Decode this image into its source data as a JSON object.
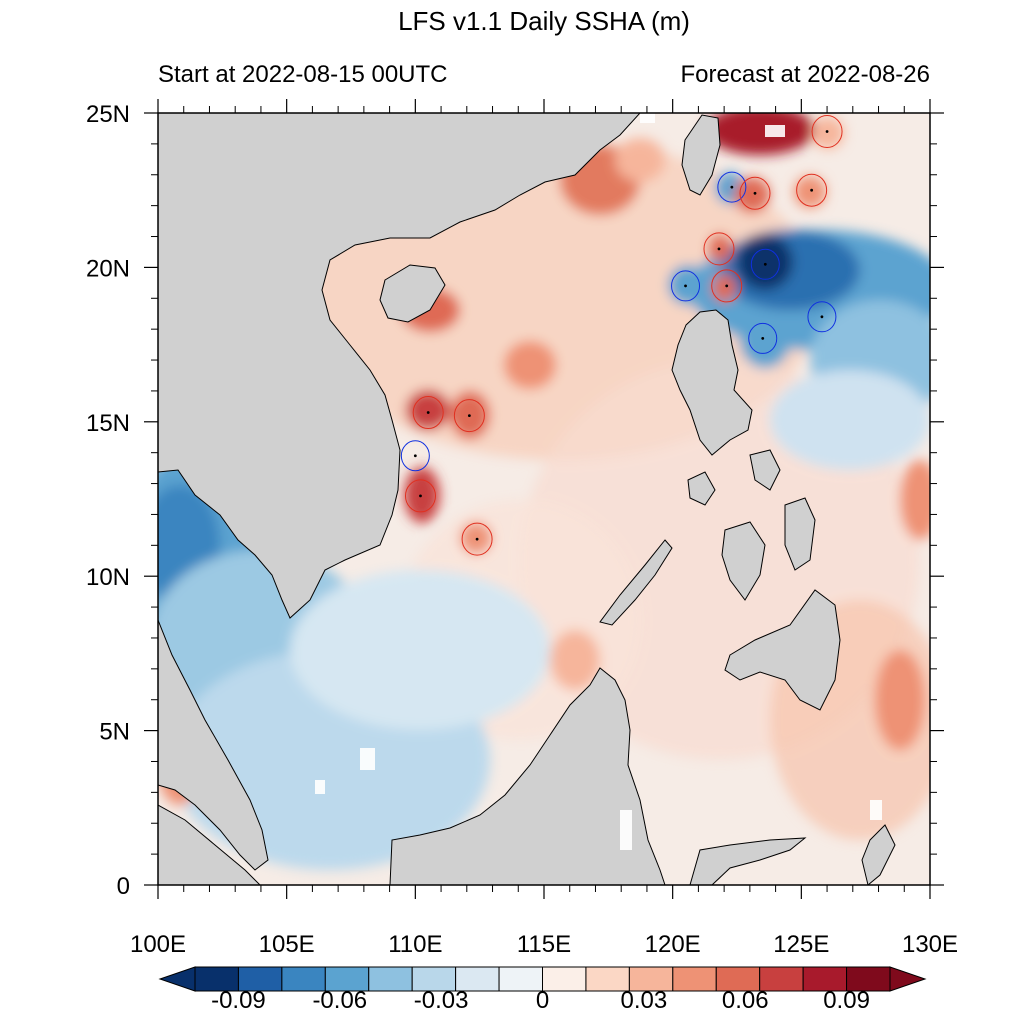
{
  "title": "LFS v1.1 Daily SSHA (m)",
  "start_label": "Start at 2022-08-15 00UTC",
  "forecast_label": "Forecast at 2022-08-26",
  "map": {
    "lon_range": [
      100,
      130
    ],
    "lat_range": [
      0,
      25
    ],
    "x_ticks": [
      "100E",
      "105E",
      "110E",
      "115E",
      "120E",
      "125E",
      "130E"
    ],
    "y_ticks": [
      "0",
      "5N",
      "10N",
      "15N",
      "20N",
      "25N"
    ],
    "land_color": "#d0d0d0",
    "colorbar_labels": [
      "-0.09",
      "-0.06",
      "-0.03",
      "0",
      "0.03",
      "0.06",
      "0.09"
    ],
    "colorbar_colors": [
      "#08306b",
      "#1f5fa6",
      "#3a85c0",
      "#5ba3d0",
      "#8ec1e0",
      "#b9d7ea",
      "#dbe8f2",
      "#eef3f7",
      "#fbefe8",
      "#fbd7c5",
      "#f6b59b",
      "#ee9275",
      "#df6b55",
      "#c8403f",
      "#a81a2c",
      "#7f0a1c"
    ],
    "eddies": [
      {
        "type": "anticyclonic",
        "lon": 110.5,
        "lat": 15.3
      },
      {
        "type": "anticyclonic",
        "lon": 112.1,
        "lat": 15.2
      },
      {
        "type": "cyclonic",
        "lon": 110.0,
        "lat": 13.9
      },
      {
        "type": "anticyclonic",
        "lon": 110.2,
        "lat": 12.6
      },
      {
        "type": "anticyclonic",
        "lon": 112.4,
        "lat": 11.2
      },
      {
        "type": "cyclonic",
        "lon": 120.5,
        "lat": 19.4
      },
      {
        "type": "anticyclonic",
        "lon": 121.8,
        "lat": 20.6
      },
      {
        "type": "anticyclonic",
        "lon": 122.1,
        "lat": 19.4
      },
      {
        "type": "cyclonic",
        "lon": 122.3,
        "lat": 22.6
      },
      {
        "type": "anticyclonic",
        "lon": 123.2,
        "lat": 22.4
      },
      {
        "type": "cyclonic",
        "lon": 123.6,
        "lat": 20.1
      },
      {
        "type": "cyclonic",
        "lon": 123.5,
        "lat": 17.7
      },
      {
        "type": "anticyclonic",
        "lon": 125.4,
        "lat": 22.5
      },
      {
        "type": "anticyclonic",
        "lon": 126.0,
        "lat": 24.4
      },
      {
        "type": "cyclonic",
        "lon": 125.8,
        "lat": 18.4
      }
    ]
  }
}
